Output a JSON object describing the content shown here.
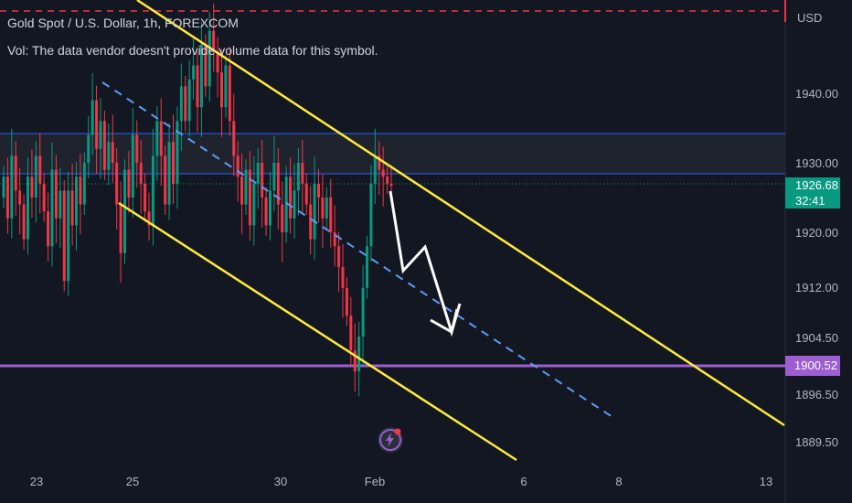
{
  "legend": {
    "title": "Gold Spot / U.S. Dollar, 1h, FOREXCOM",
    "volume_note": "Vol: The data vendor doesn't provide volume data for this symbol."
  },
  "axis": {
    "currency": "USD",
    "y_ticks": [
      "1940.00",
      "1930.00",
      "1920.00",
      "1912.00",
      "1904.50",
      "1896.50",
      "1889.50"
    ],
    "x_ticks": [
      "23",
      "25",
      "30",
      "Feb",
      "6",
      "8",
      "13"
    ]
  },
  "price_label": {
    "price": "1926.68",
    "countdown": "32:41"
  },
  "level_label": "1900.52",
  "colors": {
    "background": "#131722",
    "up": "#089981",
    "down": "#f23645",
    "channel": "#ffeb3b",
    "midline": "#5b9cf6",
    "zone_line": "#2962ff",
    "support": "#9c5ed0",
    "top_dash": "#f23645"
  },
  "icons": {
    "event": "lightning-icon"
  },
  "chart_data": {
    "type": "candlestick",
    "title": "Gold Spot / U.S. Dollar, 1h, FOREXCOM",
    "current_price": 1926.68,
    "horizontal_levels": [
      1934.0,
      1928.3,
      1900.52
    ],
    "annotations": [
      "descending yellow channel",
      "dashed blue midline",
      "white zigzag arrow projecting lower"
    ],
    "closes": [
      1928,
      1922,
      1931,
      1926,
      1924,
      1919,
      1928,
      1925,
      1931,
      1927,
      1923,
      1918,
      1929,
      1922,
      1926,
      1913,
      1926,
      1921,
      1928,
      1924,
      1930,
      1934,
      1939,
      1932,
      1936,
      1929,
      1933,
      1930,
      1924,
      1917,
      1929,
      1925,
      1934,
      1930,
      1927,
      1923,
      1921,
      1931,
      1936,
      1931,
      1924,
      1933,
      1927,
      1936,
      1941,
      1936,
      1942,
      1944,
      1938,
      1947,
      1941,
      1949,
      1946,
      1943,
      1938,
      1944,
      1936,
      1931,
      1928,
      1924,
      1929,
      1921,
      1927,
      1930,
      1925,
      1921,
      1926,
      1930,
      1924,
      1920,
      1928,
      1922,
      1926,
      1930,
      1927,
      1924,
      1919,
      1927,
      1925,
      1922,
      1925,
      1920,
      1918,
      1915,
      1912,
      1908,
      1903,
      1900,
      1905,
      1912,
      1918,
      1927,
      1931,
      1929,
      1928,
      1927,
      1926.68
    ]
  }
}
